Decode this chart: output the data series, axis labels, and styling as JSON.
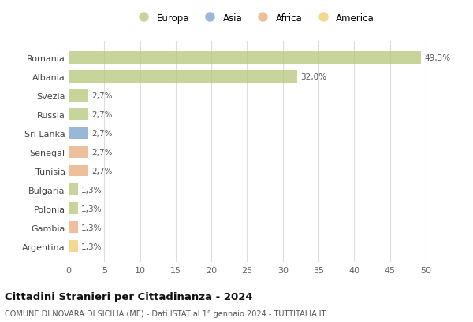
{
  "categories": [
    "Romania",
    "Albania",
    "Svezia",
    "Russia",
    "Sri Lanka",
    "Senegal",
    "Tunisia",
    "Bulgaria",
    "Polonia",
    "Gambia",
    "Argentina"
  ],
  "values": [
    49.3,
    32.0,
    2.7,
    2.7,
    2.7,
    2.7,
    2.7,
    1.3,
    1.3,
    1.3,
    1.3
  ],
  "labels": [
    "49,3%",
    "32,0%",
    "2,7%",
    "2,7%",
    "2,7%",
    "2,7%",
    "2,7%",
    "1,3%",
    "1,3%",
    "1,3%",
    "1,3%"
  ],
  "continent": [
    "Europa",
    "Europa",
    "Europa",
    "Europa",
    "Asia",
    "Africa",
    "Africa",
    "Europa",
    "Europa",
    "Africa",
    "America"
  ],
  "color_map": {
    "Europa": "#b5c87a",
    "Asia": "#7a9fca",
    "Africa": "#e8aa7a",
    "America": "#f0cc6a"
  },
  "legend_labels": [
    "Europa",
    "Asia",
    "Africa",
    "America"
  ],
  "legend_colors": [
    "#b5c87a",
    "#7a9fca",
    "#e8aa7a",
    "#f0cc6a"
  ],
  "xlim": [
    0,
    52
  ],
  "xticks": [
    0,
    5,
    10,
    15,
    20,
    25,
    30,
    35,
    40,
    45,
    50
  ],
  "title": "Cittadini Stranieri per Cittadinanza - 2024",
  "subtitle": "COMUNE DI NOVARA DI SICILIA (ME) - Dati ISTAT al 1° gennaio 2024 - TUTTITALIA.IT",
  "background_color": "#ffffff",
  "grid_color": "#dddddd",
  "bar_alpha": 0.75
}
